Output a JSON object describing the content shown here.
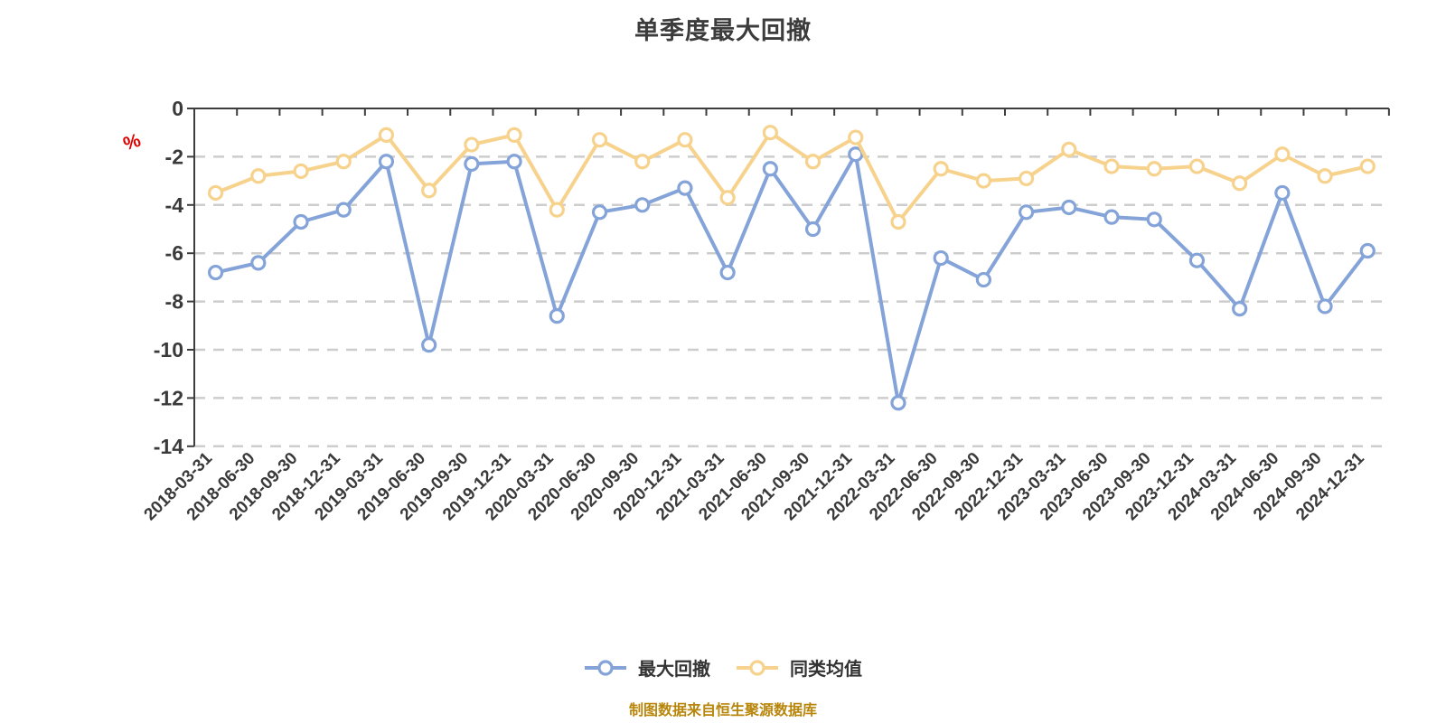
{
  "colors": {
    "background": "#ffffff",
    "axis": "#3d3d3d",
    "gridline": "#cdcdcd",
    "text": "#3a3a3a",
    "unit_label": "#e00000",
    "footnote": "#b8860b",
    "series_max_drawdown": "#84a3d8",
    "series_category_avg": "#f7d28c",
    "marker_fill": "#ffffff"
  },
  "chart_data": {
    "type": "line",
    "title": "单季度最大回撤",
    "xlabel": "",
    "ylabel": "%",
    "y_unit": "%",
    "ylim": [
      -14,
      0
    ],
    "y_ticks": [
      0,
      -2,
      -4,
      -6,
      -8,
      -10,
      -12,
      -14
    ],
    "grid": "horizontal dashed",
    "legend_position": "bottom",
    "categories": [
      "2018-03-31",
      "2018-06-30",
      "2018-09-30",
      "2018-12-31",
      "2019-03-31",
      "2019-06-30",
      "2019-09-30",
      "2019-12-31",
      "2020-03-31",
      "2020-06-30",
      "2020-09-30",
      "2020-12-31",
      "2021-03-31",
      "2021-06-30",
      "2021-09-30",
      "2021-12-31",
      "2022-03-31",
      "2022-06-30",
      "2022-09-30",
      "2022-12-31",
      "2023-03-31",
      "2023-06-30",
      "2023-09-30",
      "2023-12-31",
      "2024-03-31",
      "2024-06-30",
      "2024-09-30",
      "2024-12-31"
    ],
    "series": [
      {
        "name": "最大回撤",
        "color": "#84a3d8",
        "values": [
          -6.8,
          -6.4,
          -4.7,
          -4.2,
          -2.2,
          -9.8,
          -2.3,
          -2.2,
          -8.6,
          -4.3,
          -4.0,
          -3.3,
          -6.8,
          -2.5,
          -5.0,
          -1.9,
          -12.2,
          -6.2,
          -7.1,
          -4.3,
          -4.1,
          -4.5,
          -4.6,
          -6.3,
          -8.3,
          -3.5,
          -8.2,
          -5.9
        ]
      },
      {
        "name": "同类均值",
        "color": "#f7d28c",
        "values": [
          -3.5,
          -2.8,
          -2.6,
          -2.2,
          -1.1,
          -3.4,
          -1.5,
          -1.1,
          -4.2,
          -1.3,
          -2.2,
          -1.3,
          -3.7,
          -1.0,
          -2.2,
          -1.2,
          -4.7,
          -2.5,
          -3.0,
          -2.9,
          -1.7,
          -2.4,
          -2.5,
          -2.4,
          -3.1,
          -1.9,
          -2.8,
          -2.4
        ]
      }
    ]
  },
  "footnote": {
    "text": "制图数据来自恒生聚源数据库"
  }
}
